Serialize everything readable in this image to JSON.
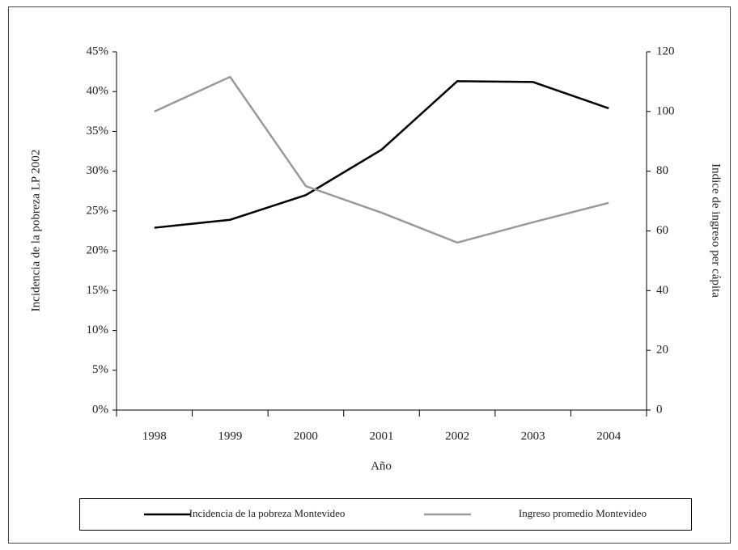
{
  "chart_data": {
    "type": "line",
    "xlabel": "Año",
    "ylabel": "Incidencia de la pobreza LP 2002",
    "y2label": "Indice de ingreso per cápita",
    "categories": [
      "1998",
      "1999",
      "2000",
      "2001",
      "2002",
      "2003",
      "2004"
    ],
    "series": [
      {
        "name": "Incidencia de la pobreza Montevideo",
        "color": "#000000",
        "values": [
          22.9,
          23.9,
          27.0,
          32.7,
          41.3,
          41.2,
          37.9
        ]
      },
      {
        "name": "Ingreso promedio Montevideo",
        "color": "#999999",
        "axis": "y2",
        "values": [
          100,
          111.6,
          75,
          66.1,
          56.1,
          62.9,
          69.4
        ]
      }
    ],
    "ylim": [
      0,
      45
    ],
    "yticks": [
      {
        "value": 0,
        "label": "0%"
      },
      {
        "value": 5,
        "label": "5%"
      },
      {
        "value": 10,
        "label": "10%"
      },
      {
        "value": 15,
        "label": "15%"
      },
      {
        "value": 20,
        "label": "20%"
      },
      {
        "value": 25,
        "label": "25%"
      },
      {
        "value": 30,
        "label": "30%"
      },
      {
        "value": 35,
        "label": "35%"
      },
      {
        "value": 40,
        "label": "40%"
      },
      {
        "value": 45,
        "label": "45%"
      }
    ],
    "y2lim": [
      0,
      120
    ],
    "y2ticks": [
      0,
      20,
      40,
      60,
      80,
      100,
      120
    ],
    "grid": false,
    "legend": "bottom"
  }
}
